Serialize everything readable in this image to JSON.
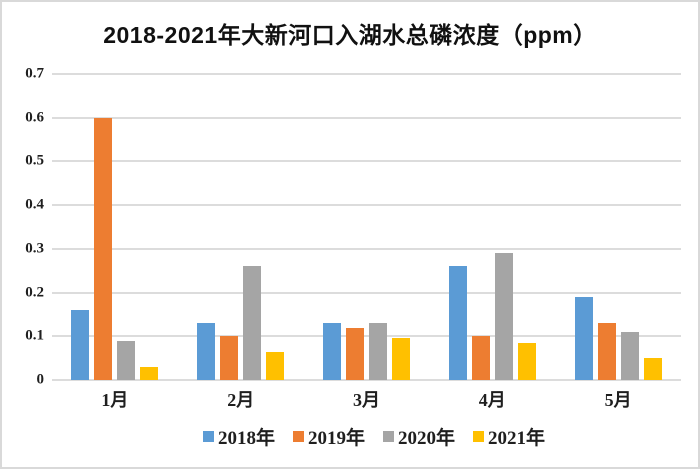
{
  "chart_data": {
    "type": "bar",
    "title": "2018-2021年大新河口入湖水总磷浓度（ppm）",
    "categories": [
      "1月",
      "2月",
      "3月",
      "4月",
      "5月"
    ],
    "series": [
      {
        "name": "2018年",
        "color": "#5B9BD5",
        "values": [
          0.16,
          0.13,
          0.13,
          0.26,
          0.19
        ]
      },
      {
        "name": "2019年",
        "color": "#ED7D31",
        "values": [
          0.6,
          0.1,
          0.12,
          0.1,
          0.13
        ]
      },
      {
        "name": "2020年",
        "color": "#A5A5A5",
        "values": [
          0.09,
          0.26,
          0.13,
          0.29,
          0.11
        ]
      },
      {
        "name": "2021年",
        "color": "#FFC000",
        "values": [
          0.03,
          0.065,
          0.095,
          0.085,
          0.05
        ]
      }
    ],
    "xlabel": "",
    "ylabel": "",
    "ylim": [
      0,
      0.7
    ],
    "ytick_step": 0.1,
    "yticks": [
      "0",
      "0.1",
      "0.2",
      "0.3",
      "0.4",
      "0.5",
      "0.6",
      "0.7"
    ],
    "grid": true,
    "legend_position": "bottom",
    "gridline_color": "#DCDCDC",
    "background_color": "#FFFFFF",
    "text_color": "#1F1F1F"
  }
}
